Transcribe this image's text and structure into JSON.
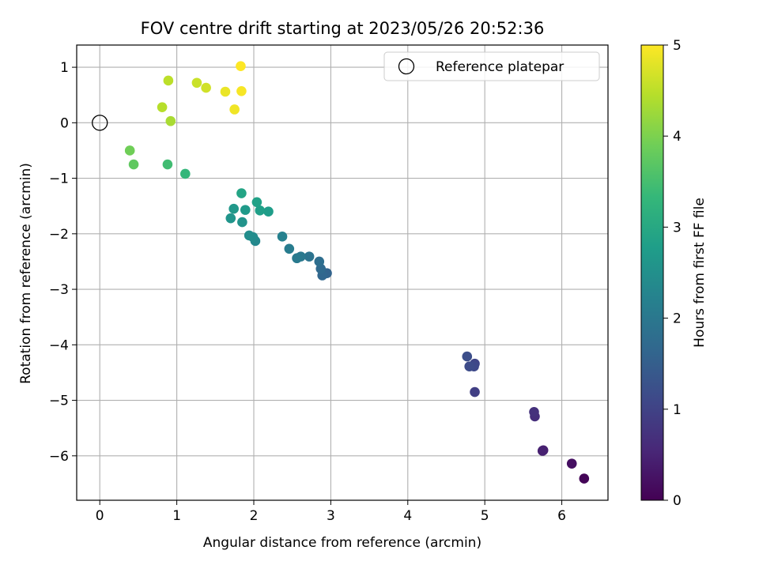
{
  "chart_data": {
    "type": "scatter",
    "title": "FOV centre drift starting at 2023/05/26 20:52:36",
    "xlabel": "Angular distance from reference (arcmin)",
    "ylabel": "Rotation from reference (arcmin)",
    "xlim": [
      -0.3,
      6.6
    ],
    "ylim": [
      -6.8,
      1.4
    ],
    "x_ticks": [
      0,
      1,
      2,
      3,
      4,
      5,
      6
    ],
    "y_ticks": [
      1,
      0,
      -1,
      -2,
      -3,
      -4,
      -5,
      -6
    ],
    "grid": true,
    "legend_placement": "top-right",
    "reference": {
      "label": "Reference platepar",
      "x": 0,
      "y": 0
    },
    "colorbar": {
      "label": "Hours from first FF file",
      "range": [
        0,
        5
      ],
      "ticks": [
        0,
        1,
        2,
        3,
        4,
        5
      ],
      "colormap": "viridis",
      "stops": [
        "#440154",
        "#482878",
        "#3e4989",
        "#31688e",
        "#26828e",
        "#1f9e89",
        "#35b779",
        "#6ece58",
        "#b5de2b",
        "#fde725"
      ]
    },
    "points": [
      {
        "x": 6.29,
        "y": -6.41,
        "h": 0.05
      },
      {
        "x": 6.13,
        "y": -6.14,
        "h": 0.2
      },
      {
        "x": 5.76,
        "y": -5.9,
        "h": 0.4
      },
      {
        "x": 5.75,
        "y": -5.91,
        "h": 0.45
      },
      {
        "x": 5.65,
        "y": -5.29,
        "h": 0.65
      },
      {
        "x": 5.64,
        "y": -5.21,
        "h": 0.7
      },
      {
        "x": 4.87,
        "y": -4.85,
        "h": 0.95
      },
      {
        "x": 4.87,
        "y": -4.34,
        "h": 1.05
      },
      {
        "x": 4.86,
        "y": -4.39,
        "h": 1.1
      },
      {
        "x": 4.8,
        "y": -4.39,
        "h": 1.15
      },
      {
        "x": 4.77,
        "y": -4.21,
        "h": 1.2
      },
      {
        "x": 2.95,
        "y": -2.71,
        "h": 1.6
      },
      {
        "x": 2.89,
        "y": -2.75,
        "h": 1.65
      },
      {
        "x": 2.87,
        "y": -2.63,
        "h": 1.7
      },
      {
        "x": 2.85,
        "y": -2.5,
        "h": 1.8
      },
      {
        "x": 2.72,
        "y": -2.41,
        "h": 1.9
      },
      {
        "x": 2.61,
        "y": -2.41,
        "h": 2.0
      },
      {
        "x": 2.56,
        "y": -2.44,
        "h": 2.05
      },
      {
        "x": 2.46,
        "y": -2.27,
        "h": 2.1
      },
      {
        "x": 2.37,
        "y": -2.05,
        "h": 2.2
      },
      {
        "x": 2.02,
        "y": -2.13,
        "h": 2.35
      },
      {
        "x": 1.99,
        "y": -2.06,
        "h": 2.4
      },
      {
        "x": 1.94,
        "y": -2.03,
        "h": 2.45
      },
      {
        "x": 1.85,
        "y": -1.79,
        "h": 2.55
      },
      {
        "x": 1.7,
        "y": -1.72,
        "h": 2.6
      },
      {
        "x": 1.74,
        "y": -1.55,
        "h": 2.65
      },
      {
        "x": 1.89,
        "y": -1.57,
        "h": 2.7
      },
      {
        "x": 2.19,
        "y": -1.6,
        "h": 2.75
      },
      {
        "x": 2.08,
        "y": -1.58,
        "h": 2.8
      },
      {
        "x": 2.04,
        "y": -1.43,
        "h": 2.85
      },
      {
        "x": 1.84,
        "y": -1.27,
        "h": 2.9
      },
      {
        "x": 1.11,
        "y": -0.92,
        "h": 3.3
      },
      {
        "x": 0.88,
        "y": -0.75,
        "h": 3.45
      },
      {
        "x": 0.44,
        "y": -0.75,
        "h": 3.75
      },
      {
        "x": 0.39,
        "y": -0.5,
        "h": 3.9
      },
      {
        "x": 0.92,
        "y": 0.03,
        "h": 4.35
      },
      {
        "x": 0.81,
        "y": 0.28,
        "h": 4.45
      },
      {
        "x": 0.89,
        "y": 0.76,
        "h": 4.5
      },
      {
        "x": 1.26,
        "y": 0.72,
        "h": 4.6
      },
      {
        "x": 1.38,
        "y": 0.63,
        "h": 4.65
      },
      {
        "x": 1.63,
        "y": 0.56,
        "h": 4.85
      },
      {
        "x": 1.75,
        "y": 0.24,
        "h": 4.9
      },
      {
        "x": 1.84,
        "y": 0.57,
        "h": 4.95
      },
      {
        "x": 1.83,
        "y": 1.02,
        "h": 5.0
      }
    ]
  }
}
